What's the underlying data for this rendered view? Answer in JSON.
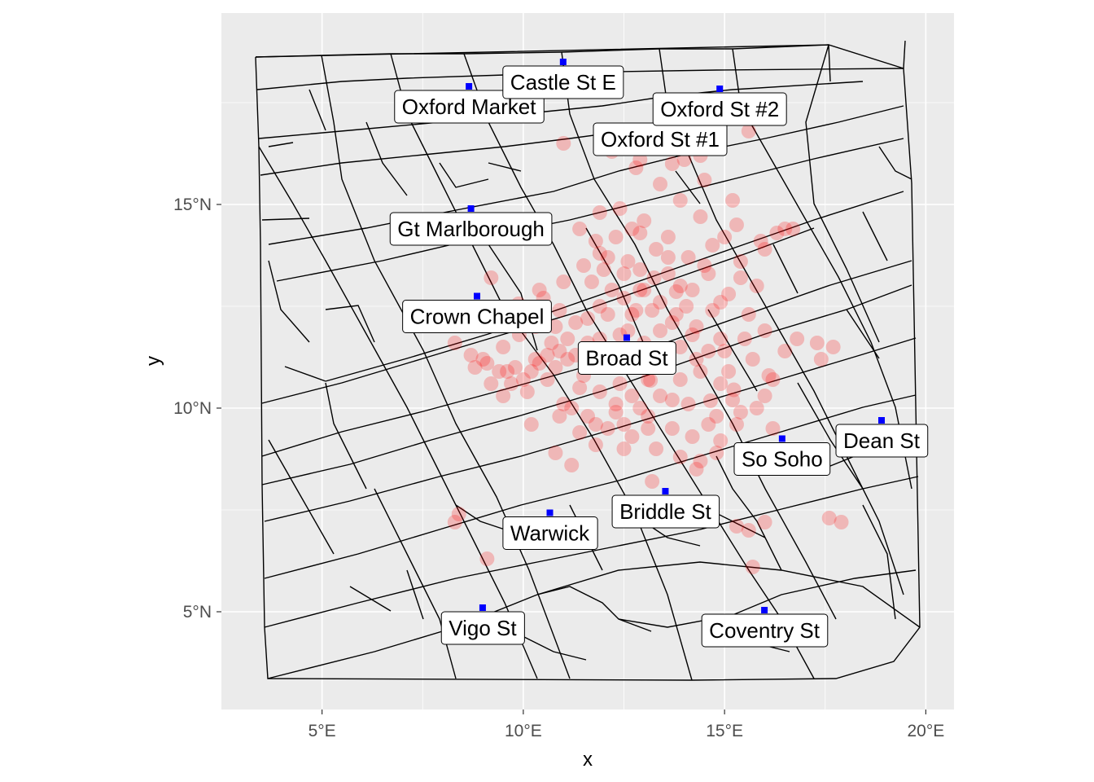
{
  "chart_data": {
    "type": "scatter",
    "title": "",
    "xlabel": "x",
    "ylabel": "y",
    "xlim": [
      2.5,
      20.7
    ],
    "ylim": [
      2.6,
      19.7
    ],
    "x_ticks": [
      {
        "value": 5,
        "label": "5°E"
      },
      {
        "value": 10,
        "label": "10°E"
      },
      {
        "value": 15,
        "label": "15°E"
      },
      {
        "value": 20,
        "label": "20°E"
      }
    ],
    "y_ticks": [
      {
        "value": 5,
        "label": "5°N"
      },
      {
        "value": 10,
        "label": "10°N"
      },
      {
        "value": 15,
        "label": "15°N"
      }
    ],
    "grid": true,
    "panel_background": "#ebebeb",
    "colors": {
      "deaths": "#ff0000",
      "pumps": "#0000ff",
      "streets": "#000000",
      "grid": "#ffffff"
    },
    "pumps": [
      {
        "name": "Oxford Market",
        "x": 8.65,
        "y": 17.9
      },
      {
        "name": "Castle St E",
        "x": 10.99,
        "y": 18.5
      },
      {
        "name": "Oxford St #1",
        "x": 13.4,
        "y": 17.1
      },
      {
        "name": "Oxford St #2",
        "x": 14.88,
        "y": 17.84
      },
      {
        "name": "Gt Marlborough",
        "x": 8.7,
        "y": 14.9
      },
      {
        "name": "Crown Chapel",
        "x": 8.85,
        "y": 12.75
      },
      {
        "name": "Broad St",
        "x": 12.57,
        "y": 11.73
      },
      {
        "name": "Dean St",
        "x": 18.9,
        "y": 9.7
      },
      {
        "name": "So Soho",
        "x": 16.43,
        "y": 9.25
      },
      {
        "name": "Briddle St",
        "x": 13.53,
        "y": 7.96
      },
      {
        "name": "Warwick",
        "x": 10.66,
        "y": 7.43
      },
      {
        "name": "Vigo St",
        "x": 8.99,
        "y": 5.1
      },
      {
        "name": "Coventry St",
        "x": 15.99,
        "y": 5.04
      }
    ],
    "deaths": [
      [
        13.59,
        11.1
      ],
      [
        9.88,
        12.56
      ],
      [
        14.65,
        10.18
      ],
      [
        15.23,
        10.45
      ],
      [
        13.16,
        10.68
      ],
      [
        13.8,
        12.86
      ],
      [
        14.05,
        12.5
      ],
      [
        13.25,
        13.2
      ],
      [
        12.8,
        12.4
      ],
      [
        11.7,
        11.1
      ],
      [
        10.9,
        11.4
      ],
      [
        10.3,
        11.2
      ],
      [
        9.6,
        10.9
      ],
      [
        9.2,
        10.6
      ],
      [
        10.1,
        10.4
      ],
      [
        11.0,
        10.1
      ],
      [
        11.6,
        9.8
      ],
      [
        12.1,
        9.5
      ],
      [
        12.7,
        9.3
      ],
      [
        13.3,
        9.0
      ],
      [
        13.9,
        8.8
      ],
      [
        14.4,
        8.7
      ],
      [
        14.9,
        9.2
      ],
      [
        15.3,
        9.6
      ],
      [
        15.8,
        10.0
      ],
      [
        16.2,
        9.5
      ],
      [
        15.1,
        10.9
      ],
      [
        14.6,
        11.4
      ],
      [
        14.2,
        11.8
      ],
      [
        13.7,
        12.1
      ],
      [
        13.2,
        12.4
      ],
      [
        12.9,
        12.9
      ],
      [
        12.5,
        13.3
      ],
      [
        12.1,
        13.7
      ],
      [
        11.8,
        14.1
      ],
      [
        11.4,
        14.4
      ],
      [
        11.9,
        14.8
      ],
      [
        12.4,
        14.9
      ],
      [
        13.0,
        14.6
      ],
      [
        13.6,
        14.2
      ],
      [
        14.1,
        13.7
      ],
      [
        14.6,
        13.3
      ],
      [
        15.1,
        12.8
      ],
      [
        15.6,
        12.3
      ],
      [
        16.0,
        11.9
      ],
      [
        16.5,
        11.4
      ],
      [
        15.4,
        13.6
      ],
      [
        15.9,
        14.1
      ],
      [
        16.3,
        14.3
      ],
      [
        16.7,
        14.4
      ],
      [
        15.0,
        14.2
      ],
      [
        14.4,
        14.7
      ],
      [
        13.9,
        15.1
      ],
      [
        13.4,
        15.5
      ],
      [
        12.8,
        15.9
      ],
      [
        12.2,
        16.3
      ],
      [
        14.0,
        16.1
      ],
      [
        14.5,
        15.6
      ],
      [
        15.2,
        15.1
      ],
      [
        14.7,
        12.4
      ],
      [
        14.3,
        12.0
      ],
      [
        13.9,
        11.5
      ],
      [
        13.5,
        11.1
      ],
      [
        13.1,
        10.7
      ],
      [
        12.7,
        10.3
      ],
      [
        12.3,
        9.9
      ],
      [
        11.9,
        10.4
      ],
      [
        11.5,
        10.8
      ],
      [
        11.1,
        11.2
      ],
      [
        10.7,
        11.6
      ],
      [
        10.3,
        12.0
      ],
      [
        9.9,
        11.8
      ],
      [
        9.5,
        11.5
      ],
      [
        9.1,
        11.1
      ],
      [
        8.7,
        11.3
      ],
      [
        8.3,
        11.6
      ],
      [
        10.6,
        10.7
      ],
      [
        11.2,
        10.0
      ],
      [
        11.8,
        9.6
      ],
      [
        12.5,
        9.6
      ],
      [
        13.1,
        9.8
      ],
      [
        13.7,
        9.5
      ],
      [
        14.2,
        9.3
      ],
      [
        14.8,
        9.8
      ],
      [
        15.2,
        10.2
      ],
      [
        14.9,
        10.6
      ],
      [
        14.4,
        10.9
      ],
      [
        13.9,
        10.7
      ],
      [
        13.4,
        10.3
      ],
      [
        12.9,
        10.0
      ],
      [
        12.4,
        10.6
      ],
      [
        12.0,
        11.0
      ],
      [
        11.6,
        11.6
      ],
      [
        11.3,
        12.1
      ],
      [
        10.9,
        12.4
      ],
      [
        10.5,
        12.7
      ],
      [
        10.1,
        12.2
      ],
      [
        10.8,
        11.0
      ],
      [
        11.4,
        10.5
      ],
      [
        12.2,
        11.4
      ],
      [
        12.6,
        11.9
      ],
      [
        13.0,
        11.6
      ],
      [
        13.4,
        11.9
      ],
      [
        13.8,
        12.3
      ],
      [
        14.2,
        12.9
      ],
      [
        14.5,
        13.5
      ],
      [
        13.3,
        13.9
      ],
      [
        12.9,
        14.3
      ],
      [
        12.6,
        13.6
      ],
      [
        12.2,
        12.9
      ],
      [
        11.9,
        12.5
      ],
      [
        11.5,
        13.5
      ],
      [
        11.0,
        13.1
      ],
      [
        15.7,
        11.2
      ],
      [
        16.1,
        10.8
      ],
      [
        15.5,
        11.7
      ],
      [
        16.8,
        11.7
      ],
      [
        17.3,
        11.6
      ],
      [
        17.7,
        11.5
      ],
      [
        17.4,
        11.2
      ],
      [
        15.3,
        7.1
      ],
      [
        15.6,
        7.0
      ],
      [
        16.0,
        7.2
      ],
      [
        17.6,
        7.3
      ],
      [
        17.9,
        7.2
      ],
      [
        15.7,
        6.1
      ],
      [
        9.1,
        6.3
      ],
      [
        8.3,
        7.2
      ],
      [
        8.4,
        7.4
      ],
      [
        10.8,
        8.9
      ],
      [
        11.2,
        8.6
      ],
      [
        13.2,
        8.2
      ],
      [
        14.3,
        8.5
      ],
      [
        14.8,
        8.9
      ],
      [
        12.9,
        16.1
      ],
      [
        13.7,
        16.0
      ],
      [
        14.4,
        16.2
      ],
      [
        15.6,
        16.8
      ],
      [
        11.0,
        16.5
      ],
      [
        12.7,
        14.4
      ],
      [
        13.6,
        13.3
      ],
      [
        14.9,
        11.7
      ],
      [
        15.0,
        11.4
      ],
      [
        10.2,
        9.6
      ],
      [
        9.5,
        10.3
      ],
      [
        10.4,
        11.1
      ],
      [
        11.1,
        11.7
      ],
      [
        11.6,
        12.2
      ],
      [
        12.1,
        12.3
      ],
      [
        12.5,
        12.7
      ],
      [
        12.9,
        13.4
      ],
      [
        13.4,
        12.6
      ],
      [
        13.9,
        13.0
      ],
      [
        14.3,
        11.2
      ],
      [
        13.7,
        10.2
      ],
      [
        13.1,
        9.5
      ],
      [
        12.5,
        9.0
      ],
      [
        11.8,
        9.1
      ],
      [
        11.4,
        9.4
      ],
      [
        10.9,
        9.8
      ],
      [
        14.6,
        9.6
      ],
      [
        14.1,
        10.1
      ],
      [
        15.4,
        9.9
      ],
      [
        16.0,
        10.3
      ],
      [
        16.2,
        10.7
      ],
      [
        9.2,
        13.2
      ],
      [
        10.4,
        12.9
      ],
      [
        10.8,
        12.0
      ],
      [
        9.8,
        11.0
      ],
      [
        10.0,
        10.7
      ],
      [
        12.3,
        10.1
      ],
      [
        13.3,
        11.3
      ],
      [
        13.6,
        13.7
      ],
      [
        14.7,
        14.0
      ],
      [
        15.3,
        14.5
      ],
      [
        16.5,
        14.4
      ],
      [
        16.0,
        13.9
      ],
      [
        15.8,
        13.0
      ],
      [
        15.4,
        13.2
      ],
      [
        14.9,
        12.6
      ],
      [
        13.0,
        12.9
      ],
      [
        12.7,
        12.3
      ],
      [
        12.4,
        11.8
      ],
      [
        11.9,
        11.7
      ],
      [
        11.3,
        11.3
      ],
      [
        10.6,
        11.3
      ],
      [
        10.2,
        10.9
      ],
      [
        9.7,
        10.6
      ],
      [
        9.4,
        10.9
      ],
      [
        9.0,
        11.2
      ],
      [
        8.8,
        11.0
      ],
      [
        9.3,
        12.3
      ],
      [
        12.0,
        13.4
      ],
      [
        11.7,
        13.1
      ],
      [
        12.3,
        14.2
      ],
      [
        11.9,
        13.8
      ]
    ]
  }
}
